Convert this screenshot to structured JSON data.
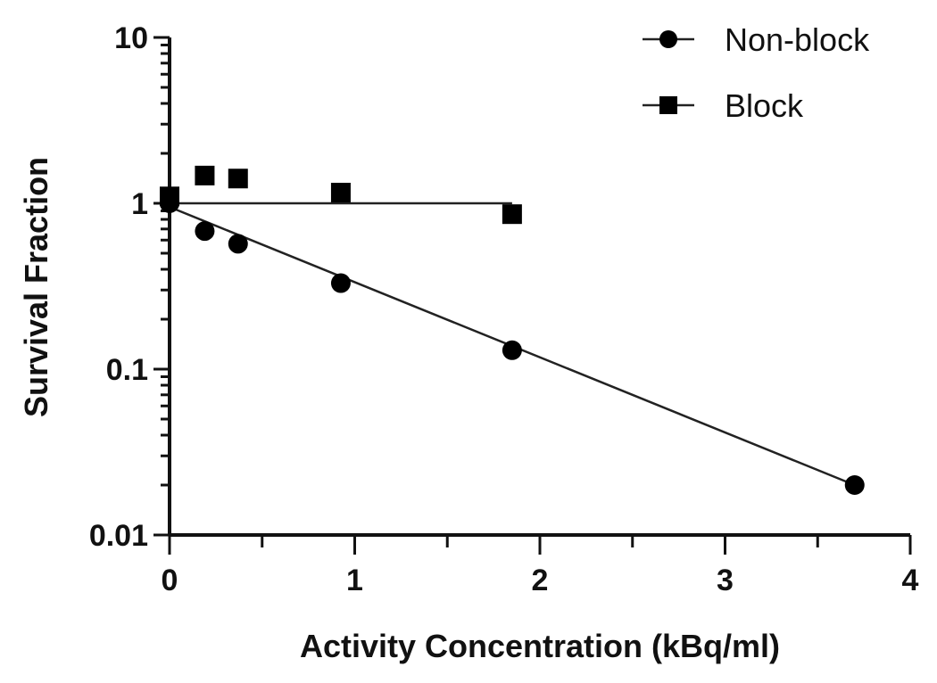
{
  "chart_data": {
    "type": "scatter",
    "title": "",
    "xlabel": "Activity Concentration (kBq/ml)",
    "ylabel": "Survival Fraction",
    "xlim": [
      0,
      4
    ],
    "ylim": [
      0.01,
      10
    ],
    "yscale": "log",
    "grid": false,
    "legend_position": "top-right",
    "x_ticks": [
      "0",
      "1",
      "2",
      "3",
      "4"
    ],
    "y_ticks": [
      "0.01",
      "0.1",
      "1",
      "10"
    ],
    "series": [
      {
        "name": "Non-block",
        "marker": "circle",
        "color": "#000000",
        "x": [
          0,
          0.19,
          0.37,
          0.925,
          1.85,
          3.7
        ],
        "y": [
          1.0,
          0.68,
          0.57,
          0.33,
          0.13,
          0.02
        ],
        "fit_line": {
          "x": [
            0,
            3.7
          ],
          "y": [
            0.95,
            0.02
          ]
        }
      },
      {
        "name": "Block",
        "marker": "square",
        "color": "#000000",
        "x": [
          0,
          0.19,
          0.37,
          0.925,
          1.85
        ],
        "y": [
          1.1,
          1.47,
          1.41,
          1.16,
          0.86
        ],
        "fit_line": {
          "x": [
            0,
            1.85
          ],
          "y": [
            1.0,
            1.0
          ]
        }
      }
    ]
  },
  "legend": {
    "items": [
      {
        "label": "Non-block",
        "marker": "circle"
      },
      {
        "label": "Block",
        "marker": "square"
      }
    ]
  }
}
